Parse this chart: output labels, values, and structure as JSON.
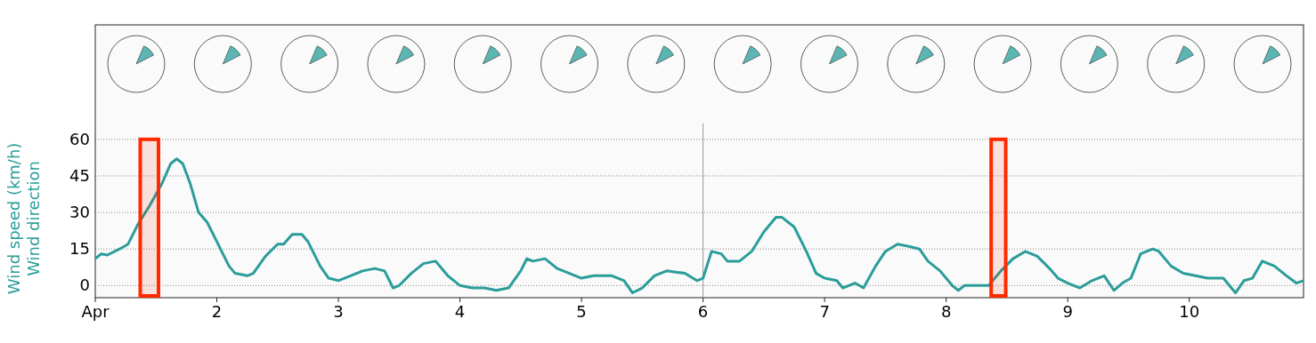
{
  "chart_data": {
    "type": "line",
    "ylabel": "Wind speed (km/h)\nWind direction",
    "x": [
      1.0,
      1.05,
      1.1,
      1.2,
      1.27,
      1.35,
      1.45,
      1.55,
      1.62,
      1.67,
      1.72,
      1.78,
      1.85,
      1.92,
      2.0,
      2.1,
      2.15,
      2.25,
      2.3,
      2.4,
      2.5,
      2.55,
      2.62,
      2.7,
      2.75,
      2.85,
      2.92,
      3.0,
      3.1,
      3.2,
      3.3,
      3.38,
      3.45,
      3.5,
      3.6,
      3.7,
      3.8,
      3.9,
      4.0,
      4.1,
      4.2,
      4.3,
      4.4,
      4.5,
      4.55,
      4.6,
      4.7,
      4.8,
      4.9,
      5.0,
      5.1,
      5.25,
      5.35,
      5.42,
      5.5,
      5.6,
      5.7,
      5.85,
      5.95,
      6.0,
      6.07,
      6.15,
      6.2,
      6.3,
      6.4,
      6.5,
      6.6,
      6.65,
      6.75,
      6.85,
      6.93,
      7.0,
      7.1,
      7.15,
      7.25,
      7.32,
      7.42,
      7.5,
      7.6,
      7.7,
      7.78,
      7.85,
      7.95,
      8.05,
      8.1,
      8.15,
      8.25,
      8.35,
      8.45,
      8.55,
      8.65,
      8.75,
      8.85,
      8.92,
      9.0,
      9.1,
      9.2,
      9.3,
      9.38,
      9.45,
      9.52,
      9.6,
      9.7,
      9.75,
      9.85,
      9.95,
      10.05,
      10.15,
      10.28,
      10.38,
      10.45,
      10.52,
      10.6,
      10.7,
      10.8,
      10.88,
      10.94
    ],
    "series": [
      {
        "color": "#2a9d9a",
        "values": [
          11,
          13,
          12.5,
          15,
          17,
          25,
          33,
          42,
          50,
          52,
          50,
          42,
          30,
          26,
          18,
          8,
          5,
          4,
          5,
          12,
          17,
          17,
          21,
          21,
          18,
          8,
          3,
          2,
          4,
          6,
          7,
          6,
          -1,
          0,
          5,
          9,
          10,
          4,
          0,
          -1,
          -1,
          -2,
          -1,
          6,
          11,
          10,
          11,
          7,
          5,
          3,
          4,
          4,
          2,
          -3,
          -1,
          4,
          6,
          5,
          2,
          3,
          14,
          13,
          10,
          10,
          14,
          22,
          28,
          28,
          24,
          14,
          5,
          3,
          2,
          -1,
          1,
          -1,
          8,
          14,
          17,
          16,
          15,
          10,
          6,
          0,
          -2,
          0,
          0,
          0,
          6,
          11,
          14,
          12,
          7,
          3,
          1,
          -1,
          2,
          4,
          -2,
          1,
          3,
          13,
          15,
          14,
          8,
          5,
          4,
          3,
          3,
          -3,
          2,
          3,
          10,
          8,
          4,
          1,
          2
        ]
      }
    ],
    "xlim": [
      1,
      10.94
    ],
    "xticks": [
      {
        "value": 1,
        "label": "Apr"
      },
      2,
      3,
      4,
      5,
      6,
      7,
      8,
      9,
      10
    ],
    "ylim": [
      -5,
      107
    ],
    "yticks": [
      0,
      15,
      30,
      45,
      60
    ],
    "grid": "y",
    "line_style": "solid",
    "marker": "none",
    "ref_lines": [
      {
        "axis": "x",
        "value": 6,
        "color": "#999999"
      }
    ],
    "bands": [
      {
        "axis": "x",
        "from": 1.37,
        "to": 1.52,
        "color": "#ff2a00"
      },
      {
        "axis": "x",
        "from": 8.37,
        "to": 8.49,
        "color": "#ff2a00"
      }
    ]
  }
}
